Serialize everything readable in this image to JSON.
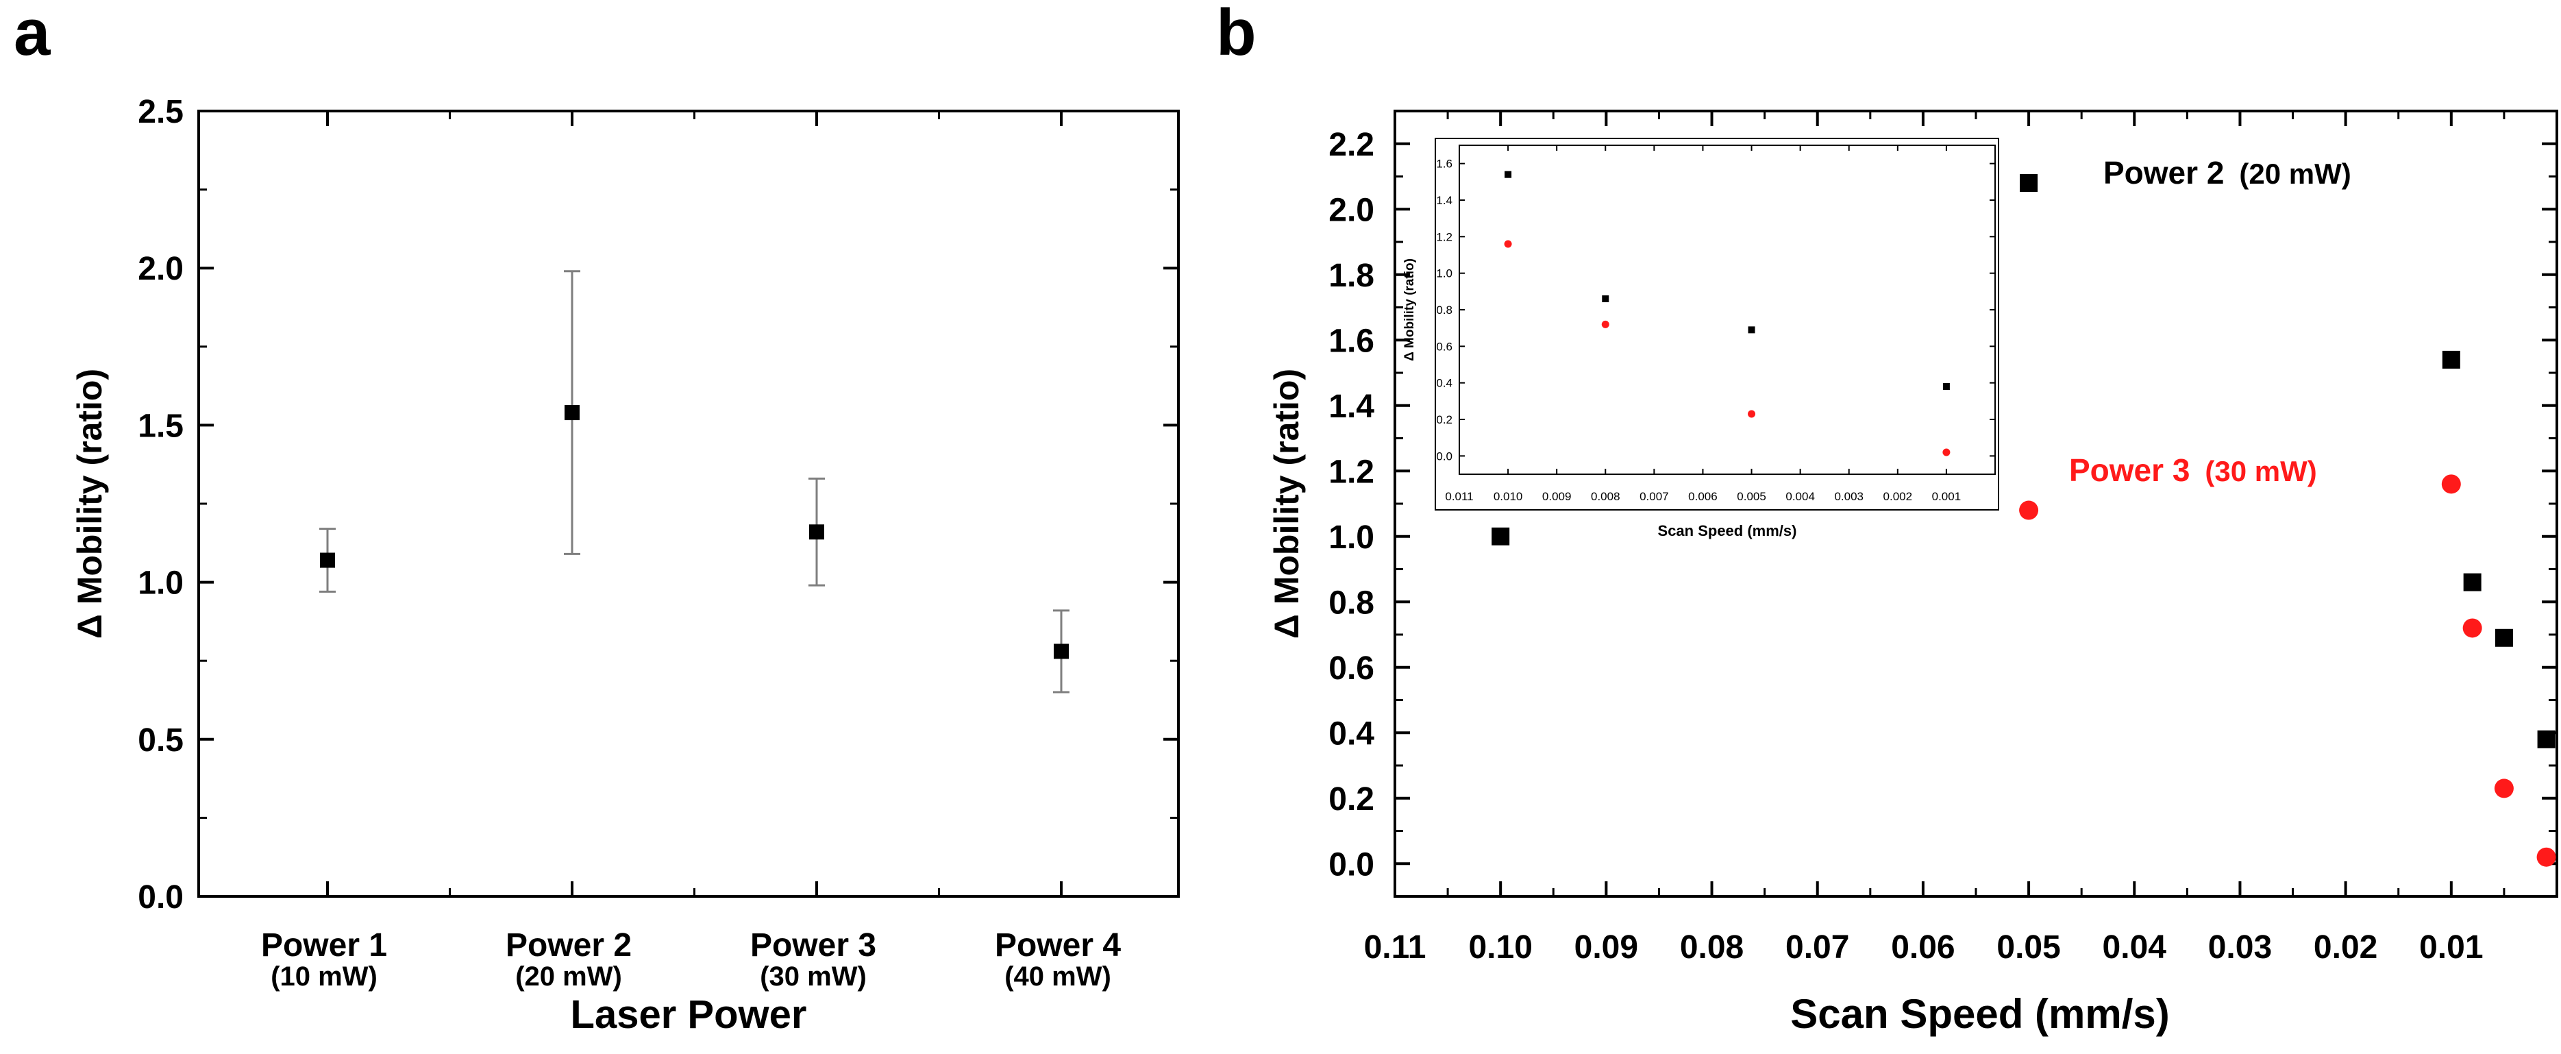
{
  "colors": {
    "series_black": "#000000",
    "series_red": "#ff1a1a",
    "errorbar": "#7f7f7f"
  },
  "chart_data": [
    {
      "panel_label": "a",
      "type": "scatter",
      "xlabel": "Laser Power",
      "ylabel": "Δ Mobility (ratio)",
      "ylim": [
        0,
        2.5
      ],
      "yticks": [
        "0.0",
        "0.5",
        "1.0",
        "1.5",
        "2.0",
        "2.5"
      ],
      "categories": [
        {
          "name": "Power 1",
          "sub": "(10 mW)"
        },
        {
          "name": "Power 2",
          "sub": "(20 mW)"
        },
        {
          "name": "Power 3",
          "sub": "(30 mW)"
        },
        {
          "name": "Power 4",
          "sub": "(40 mW)"
        }
      ],
      "series": [
        {
          "name": "Δ Mobility",
          "values": [
            1.07,
            1.54,
            1.16,
            0.78
          ],
          "err_low": [
            0.97,
            1.09,
            0.99,
            0.65
          ],
          "err_high": [
            1.17,
            1.99,
            1.33,
            0.91
          ]
        }
      ]
    },
    {
      "panel_label": "b",
      "type": "scatter",
      "xlabel": "Scan Speed (mm/s)",
      "ylabel": "Δ Mobility (ratio)",
      "xlim": [
        0.11,
        0.0
      ],
      "ylim": [
        -0.1,
        2.3
      ],
      "xticks": [
        "0.11",
        "0.10",
        "0.09",
        "0.08",
        "0.07",
        "0.06",
        "0.05",
        "0.04",
        "0.03",
        "0.02",
        "0.01"
      ],
      "yticks": [
        "0.0",
        "0.2",
        "0.4",
        "0.6",
        "0.8",
        "1.0",
        "1.2",
        "1.4",
        "1.6",
        "1.8",
        "2.0",
        "2.2"
      ],
      "series": [
        {
          "name": "Power 2",
          "unit": "(20 mW)",
          "color": "#000000",
          "marker": "square",
          "x": [
            0.1,
            0.05,
            0.01,
            0.008,
            0.005,
            0.001
          ],
          "y": [
            1.0,
            2.08,
            1.54,
            0.86,
            0.69,
            0.38
          ]
        },
        {
          "name": "Power 3",
          "unit": "(30 mW)",
          "color": "#ff1a1a",
          "marker": "circle",
          "x": [
            0.05,
            0.01,
            0.008,
            0.005,
            0.001
          ],
          "y": [
            1.08,
            1.16,
            0.72,
            0.23,
            0.02
          ]
        }
      ],
      "inset": {
        "xlabel": "Scan Speed (mm/s)",
        "ylabel": "Δ Mobility (ratio)",
        "xlim": [
          0.011,
          0.0
        ],
        "ylim": [
          -0.1,
          1.7
        ],
        "xticks": [
          "0.011",
          "0.010",
          "0.009",
          "0.008",
          "0.007",
          "0.006",
          "0.005",
          "0.004",
          "0.003",
          "0.002",
          "0.001"
        ],
        "yticks": [
          "0.0",
          "0.2",
          "0.4",
          "0.6",
          "0.8",
          "1.0",
          "1.2",
          "1.4",
          "1.6"
        ],
        "series": [
          {
            "name": "Power 2",
            "color": "#000000",
            "marker": "square",
            "x": [
              0.01,
              0.008,
              0.005,
              0.001
            ],
            "y": [
              1.54,
              0.86,
              0.69,
              0.38
            ]
          },
          {
            "name": "Power 3",
            "color": "#ff1a1a",
            "marker": "circle",
            "x": [
              0.01,
              0.008,
              0.005,
              0.001
            ],
            "y": [
              1.16,
              0.72,
              0.23,
              0.02
            ]
          }
        ]
      }
    }
  ]
}
